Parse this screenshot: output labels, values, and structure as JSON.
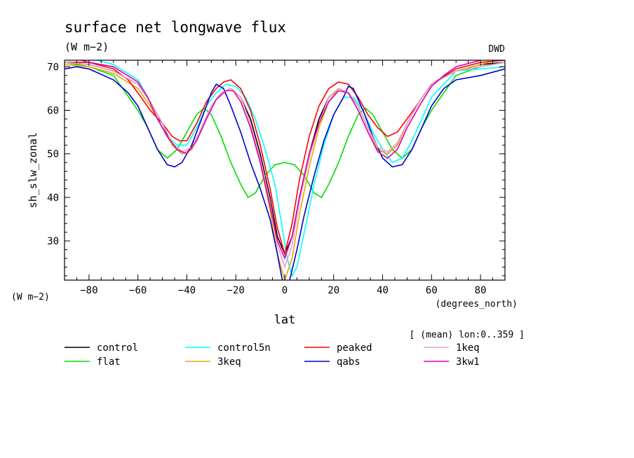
{
  "chart_data": {
    "type": "line",
    "title": "surface net longwave flux",
    "subtitle": "(W m−2)",
    "corner_label": "DWD",
    "xlabel": "lat",
    "ylabel": "sh_slw_zonal",
    "x_units": "(degrees_north)",
    "y_units": "(W m−2)",
    "mean_note": "[ (mean) lon:0..359 ]",
    "xlim": [
      -90,
      90
    ],
    "ylim": [
      21,
      71.5
    ],
    "x_ticks": [
      -80,
      -60,
      -40,
      -20,
      0,
      20,
      40,
      60,
      80
    ],
    "y_ticks": [
      30,
      40,
      50,
      60,
      70
    ],
    "legend_placement": "below",
    "series": [
      {
        "name": "control",
        "color": "#000000",
        "points": [
          [
            -90,
            71
          ],
          [
            -80,
            70.5
          ],
          [
            -70,
            69
          ],
          [
            -60,
            66
          ],
          [
            -55,
            62
          ],
          [
            -50,
            57
          ],
          [
            -46,
            52
          ],
          [
            -42,
            50
          ],
          [
            -38,
            51
          ],
          [
            -34,
            56
          ],
          [
            -30,
            61
          ],
          [
            -26,
            64
          ],
          [
            -22,
            65
          ],
          [
            -18,
            63
          ],
          [
            -14,
            58
          ],
          [
            -10,
            50
          ],
          [
            -6,
            40
          ],
          [
            -3,
            31
          ],
          [
            0,
            27
          ],
          [
            3,
            31
          ],
          [
            6,
            40
          ],
          [
            10,
            50
          ],
          [
            14,
            58
          ],
          [
            18,
            63
          ],
          [
            22,
            65
          ],
          [
            26,
            64
          ],
          [
            30,
            61
          ],
          [
            34,
            56
          ],
          [
            38,
            51
          ],
          [
            42,
            50
          ],
          [
            46,
            52
          ],
          [
            50,
            57
          ],
          [
            55,
            62
          ],
          [
            60,
            66
          ],
          [
            70,
            69
          ],
          [
            80,
            70.5
          ],
          [
            90,
            71
          ]
        ]
      },
      {
        "name": "flat",
        "color": "#00dd00",
        "points": [
          [
            -90,
            71
          ],
          [
            -80,
            70
          ],
          [
            -70,
            68
          ],
          [
            -65,
            64
          ],
          [
            -60,
            60
          ],
          [
            -56,
            56
          ],
          [
            -52,
            51
          ],
          [
            -48,
            49
          ],
          [
            -44,
            51
          ],
          [
            -40,
            55
          ],
          [
            -36,
            59
          ],
          [
            -33,
            60.5
          ],
          [
            -30,
            59
          ],
          [
            -26,
            54
          ],
          [
            -22,
            48
          ],
          [
            -18,
            43
          ],
          [
            -15,
            40
          ],
          [
            -12,
            41
          ],
          [
            -8,
            45
          ],
          [
            -4,
            47.5
          ],
          [
            0,
            48
          ],
          [
            4,
            47.5
          ],
          [
            8,
            45
          ],
          [
            12,
            41
          ],
          [
            15,
            40
          ],
          [
            18,
            43
          ],
          [
            22,
            48
          ],
          [
            26,
            54
          ],
          [
            30,
            59
          ],
          [
            33,
            60.5
          ],
          [
            36,
            59
          ],
          [
            40,
            55
          ],
          [
            44,
            51
          ],
          [
            48,
            49
          ],
          [
            52,
            51
          ],
          [
            56,
            56
          ],
          [
            60,
            60
          ],
          [
            65,
            64
          ],
          [
            70,
            68
          ],
          [
            80,
            70
          ],
          [
            90,
            71
          ]
        ]
      },
      {
        "name": "control5n",
        "color": "#00ffff",
        "points": [
          [
            -90,
            72
          ],
          [
            -85,
            72.5
          ],
          [
            -80,
            72
          ],
          [
            -70,
            70.5
          ],
          [
            -60,
            67
          ],
          [
            -56,
            63
          ],
          [
            -52,
            58
          ],
          [
            -48,
            54
          ],
          [
            -44,
            52
          ],
          [
            -40,
            52
          ],
          [
            -36,
            56
          ],
          [
            -32,
            61
          ],
          [
            -28,
            64
          ],
          [
            -24,
            66
          ],
          [
            -20,
            65.5
          ],
          [
            -16,
            63
          ],
          [
            -12,
            58
          ],
          [
            -8,
            51
          ],
          [
            -4,
            43
          ],
          [
            -1,
            33
          ],
          [
            1,
            26
          ],
          [
            3,
            22
          ],
          [
            5,
            24
          ],
          [
            8,
            32
          ],
          [
            12,
            43
          ],
          [
            16,
            52
          ],
          [
            20,
            59
          ],
          [
            24,
            63
          ],
          [
            28,
            63
          ],
          [
            32,
            60
          ],
          [
            36,
            55
          ],
          [
            40,
            51
          ],
          [
            44,
            48
          ],
          [
            48,
            49
          ],
          [
            52,
            53
          ],
          [
            56,
            58
          ],
          [
            60,
            63
          ],
          [
            65,
            66
          ],
          [
            70,
            69
          ],
          [
            80,
            69.5
          ],
          [
            90,
            70
          ]
        ]
      },
      {
        "name": "3keq",
        "color": "#e8a800",
        "points": [
          [
            -90,
            70.5
          ],
          [
            -80,
            70
          ],
          [
            -70,
            68.5
          ],
          [
            -60,
            65
          ],
          [
            -55,
            61
          ],
          [
            -50,
            56
          ],
          [
            -46,
            52
          ],
          [
            -42,
            50
          ],
          [
            -38,
            51
          ],
          [
            -34,
            56
          ],
          [
            -30,
            61
          ],
          [
            -26,
            64
          ],
          [
            -22,
            65
          ],
          [
            -18,
            63
          ],
          [
            -14,
            57
          ],
          [
            -10,
            48
          ],
          [
            -6,
            37
          ],
          [
            -3,
            27
          ],
          [
            0,
            21
          ],
          [
            3,
            26
          ],
          [
            6,
            36
          ],
          [
            10,
            47
          ],
          [
            14,
            56
          ],
          [
            18,
            62
          ],
          [
            22,
            65
          ],
          [
            26,
            64
          ],
          [
            30,
            61
          ],
          [
            34,
            56
          ],
          [
            38,
            51
          ],
          [
            42,
            50
          ],
          [
            46,
            52
          ],
          [
            50,
            57
          ],
          [
            55,
            62
          ],
          [
            60,
            66
          ],
          [
            70,
            69
          ],
          [
            80,
            70.5
          ],
          [
            90,
            72
          ]
        ]
      },
      {
        "name": "peaked",
        "color": "#ff0000",
        "points": [
          [
            -90,
            71
          ],
          [
            -80,
            71
          ],
          [
            -70,
            69.5
          ],
          [
            -64,
            67
          ],
          [
            -60,
            64
          ],
          [
            -55,
            60
          ],
          [
            -50,
            57
          ],
          [
            -46,
            54
          ],
          [
            -43,
            53
          ],
          [
            -40,
            53
          ],
          [
            -36,
            57
          ],
          [
            -32,
            62
          ],
          [
            -28,
            65
          ],
          [
            -25,
            66.5
          ],
          [
            -22,
            67
          ],
          [
            -18,
            65
          ],
          [
            -14,
            60
          ],
          [
            -10,
            52
          ],
          [
            -6,
            42
          ],
          [
            -3,
            33
          ],
          [
            0,
            27
          ],
          [
            3,
            34
          ],
          [
            6,
            44
          ],
          [
            10,
            54
          ],
          [
            14,
            61
          ],
          [
            18,
            65
          ],
          [
            22,
            66.5
          ],
          [
            26,
            66
          ],
          [
            30,
            63
          ],
          [
            34,
            59
          ],
          [
            38,
            56
          ],
          [
            42,
            54
          ],
          [
            46,
            55
          ],
          [
            50,
            58
          ],
          [
            55,
            62
          ],
          [
            60,
            66
          ],
          [
            70,
            69.5
          ],
          [
            80,
            71
          ],
          [
            90,
            71.5
          ]
        ]
      },
      {
        "name": "qabs",
        "color": "#0000cc",
        "points": [
          [
            -90,
            69.5
          ],
          [
            -85,
            70
          ],
          [
            -80,
            69.5
          ],
          [
            -70,
            67
          ],
          [
            -64,
            64
          ],
          [
            -60,
            61
          ],
          [
            -56,
            56
          ],
          [
            -52,
            51
          ],
          [
            -48,
            47.5
          ],
          [
            -45,
            47
          ],
          [
            -42,
            48
          ],
          [
            -38,
            52
          ],
          [
            -34,
            58
          ],
          [
            -30,
            64
          ],
          [
            -28,
            66
          ],
          [
            -25,
            65
          ],
          [
            -22,
            61
          ],
          [
            -18,
            55
          ],
          [
            -14,
            48
          ],
          [
            -10,
            42
          ],
          [
            -6,
            35
          ],
          [
            -3,
            27
          ],
          [
            -1,
            21
          ],
          [
            0,
            19.5
          ],
          [
            2,
            21
          ],
          [
            5,
            28
          ],
          [
            8,
            36
          ],
          [
            12,
            45
          ],
          [
            16,
            53
          ],
          [
            20,
            59
          ],
          [
            24,
            63
          ],
          [
            26,
            65.5
          ],
          [
            28,
            65
          ],
          [
            32,
            60
          ],
          [
            36,
            54
          ],
          [
            40,
            49
          ],
          [
            44,
            47
          ],
          [
            48,
            47.5
          ],
          [
            52,
            51
          ],
          [
            56,
            56
          ],
          [
            60,
            61
          ],
          [
            65,
            65
          ],
          [
            70,
            67
          ],
          [
            80,
            68
          ],
          [
            90,
            69.5
          ]
        ]
      },
      {
        "name": "1keq",
        "color": "#e8a0d8",
        "points": [
          [
            -90,
            71
          ],
          [
            -80,
            70.5
          ],
          [
            -70,
            69
          ],
          [
            -60,
            66
          ],
          [
            -55,
            62
          ],
          [
            -50,
            57
          ],
          [
            -46,
            52.5
          ],
          [
            -42,
            50.5
          ],
          [
            -38,
            51.5
          ],
          [
            -34,
            56
          ],
          [
            -30,
            61
          ],
          [
            -26,
            64
          ],
          [
            -22,
            65
          ],
          [
            -18,
            63
          ],
          [
            -14,
            57
          ],
          [
            -10,
            49
          ],
          [
            -6,
            39
          ],
          [
            -3,
            29
          ],
          [
            0,
            24
          ],
          [
            3,
            29
          ],
          [
            6,
            39
          ],
          [
            10,
            49
          ],
          [
            14,
            57
          ],
          [
            18,
            63
          ],
          [
            22,
            65
          ],
          [
            26,
            64
          ],
          [
            30,
            61
          ],
          [
            34,
            56
          ],
          [
            38,
            51.5
          ],
          [
            42,
            50.5
          ],
          [
            46,
            52.5
          ],
          [
            50,
            57
          ],
          [
            55,
            62
          ],
          [
            60,
            66
          ],
          [
            70,
            69
          ],
          [
            80,
            70
          ],
          [
            90,
            71
          ]
        ]
      },
      {
        "name": "3kw1",
        "color": "#dd00aa",
        "points": [
          [
            -90,
            73
          ],
          [
            -86,
            72
          ],
          [
            -80,
            71
          ],
          [
            -70,
            70
          ],
          [
            -60,
            66.5
          ],
          [
            -56,
            63
          ],
          [
            -52,
            58
          ],
          [
            -48,
            54
          ],
          [
            -44,
            51
          ],
          [
            -40,
            50
          ],
          [
            -36,
            53
          ],
          [
            -32,
            58
          ],
          [
            -28,
            62.5
          ],
          [
            -24,
            64.5
          ],
          [
            -21,
            64.5
          ],
          [
            -18,
            62
          ],
          [
            -14,
            56
          ],
          [
            -10,
            48
          ],
          [
            -6,
            38
          ],
          [
            -3,
            30
          ],
          [
            0,
            26
          ],
          [
            3,
            31
          ],
          [
            6,
            40
          ],
          [
            10,
            50
          ],
          [
            14,
            57
          ],
          [
            18,
            62
          ],
          [
            22,
            64.5
          ],
          [
            26,
            64
          ],
          [
            30,
            60
          ],
          [
            34,
            55
          ],
          [
            38,
            50.5
          ],
          [
            42,
            49
          ],
          [
            46,
            51
          ],
          [
            50,
            56
          ],
          [
            55,
            61
          ],
          [
            60,
            65.5
          ],
          [
            65,
            68
          ],
          [
            70,
            70
          ],
          [
            80,
            71.5
          ],
          [
            90,
            72.5
          ]
        ]
      }
    ]
  }
}
